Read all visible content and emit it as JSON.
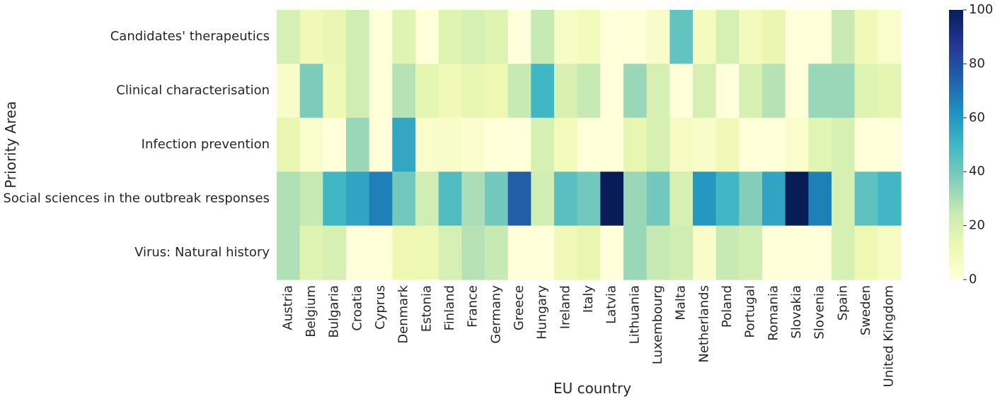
{
  "chart_data": {
    "type": "heatmap",
    "xlabel": "EU country",
    "ylabel": "Priority Area",
    "colormap": "YlGnBu",
    "colorbar": {
      "range": [
        0,
        100
      ],
      "ticks": [
        0,
        20,
        40,
        60,
        80,
        100
      ]
    },
    "x_categories": [
      "Austria",
      "Belgium",
      "Bulgaria",
      "Croatia",
      "Cyprus",
      "Denmark",
      "Estonia",
      "Finland",
      "France",
      "Germany",
      "Greece",
      "Hungary",
      "Ireland",
      "Italy",
      "Latvia",
      "Lithuania",
      "Luxembourg",
      "Malta",
      "Netherlands",
      "Poland",
      "Portugal",
      "Romania",
      "Slovakia",
      "Slovenia",
      "Spain",
      "Sweden",
      "United Kingdom"
    ],
    "y_categories": [
      "Candidates' therapeutics",
      "Clinical characterisation",
      "Infection prevention",
      "Social sciences in the outbreak responses",
      "Virus: Natural history"
    ],
    "values": [
      [
        20,
        10,
        14,
        22,
        0,
        17,
        0,
        17,
        20,
        17,
        0,
        25,
        6,
        9,
        0,
        0,
        5,
        43,
        8,
        20,
        9,
        13,
        0,
        0,
        24,
        10,
        4
      ],
      [
        5,
        38,
        11,
        22,
        0,
        28,
        15,
        10,
        14,
        12,
        25,
        50,
        19,
        25,
        0,
        33,
        20,
        0,
        20,
        0,
        20,
        28,
        0,
        33,
        33,
        17,
        15
      ],
      [
        14,
        4,
        0,
        33,
        0,
        55,
        4,
        5,
        3,
        0,
        0,
        20,
        9,
        0,
        0,
        14,
        20,
        7,
        5,
        10,
        0,
        0,
        4,
        16,
        20,
        0,
        0
      ],
      [
        29,
        25,
        50,
        56,
        67,
        40,
        22,
        47,
        30,
        40,
        75,
        22,
        45,
        40,
        100,
        33,
        40,
        20,
        60,
        50,
        37,
        56,
        100,
        67,
        20,
        44,
        50
      ],
      [
        29,
        17,
        20,
        0,
        0,
        12,
        11,
        20,
        28,
        25,
        0,
        0,
        10,
        14,
        0,
        33,
        25,
        22,
        5,
        25,
        22,
        0,
        0,
        0,
        20,
        12,
        7
      ]
    ]
  }
}
